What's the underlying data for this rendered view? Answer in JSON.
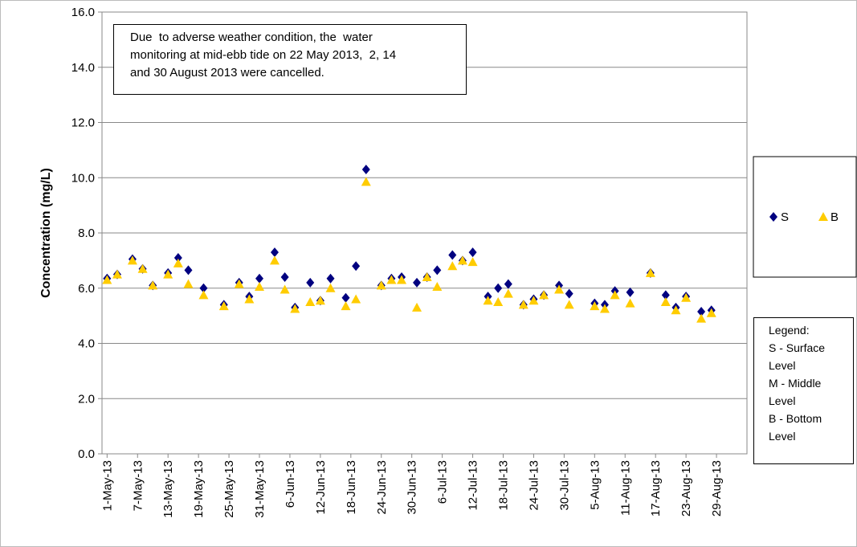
{
  "chart_data": {
    "type": "scatter",
    "ylabel": "Concentration (mg/L)",
    "annotation": [
      "Due  to adverse weather condition, the  water",
      "monitoring at mid-ebb tide on 22 May 2013,  2, 14",
      "and 30 August 2013 were cancelled."
    ],
    "legend_note": [
      "Legend:",
      "S - Surface Level",
      "M - Middle Level",
      "B - Bottom Level"
    ],
    "x": [
      "2013-05-01",
      "2013-05-03",
      "2013-05-06",
      "2013-05-08",
      "2013-05-10",
      "2013-05-13",
      "2013-05-15",
      "2013-05-17",
      "2013-05-20",
      "2013-05-24",
      "2013-05-27",
      "2013-05-29",
      "2013-05-31",
      "2013-06-03",
      "2013-06-05",
      "2013-06-07",
      "2013-06-10",
      "2013-06-12",
      "2013-06-14",
      "2013-06-17",
      "2013-06-19",
      "2013-06-21",
      "2013-06-24",
      "2013-06-26",
      "2013-06-28",
      "2013-07-01",
      "2013-07-03",
      "2013-07-05",
      "2013-07-08",
      "2013-07-10",
      "2013-07-12",
      "2013-07-15",
      "2013-07-17",
      "2013-07-19",
      "2013-07-22",
      "2013-07-24",
      "2013-07-26",
      "2013-07-29",
      "2013-07-31",
      "2013-08-05",
      "2013-08-07",
      "2013-08-09",
      "2013-08-12",
      "2013-08-16",
      "2013-08-19",
      "2013-08-21",
      "2013-08-23",
      "2013-08-26",
      "2013-08-28"
    ],
    "series": [
      {
        "name": "S",
        "color": "#000080",
        "marker": "diamond",
        "values": [
          6.35,
          6.5,
          7.05,
          6.7,
          6.1,
          6.55,
          7.1,
          6.65,
          6.0,
          5.4,
          6.2,
          5.7,
          6.35,
          7.3,
          6.4,
          5.3,
          6.2,
          5.55,
          6.35,
          5.65,
          6.8,
          10.3,
          6.1,
          6.35,
          6.4,
          6.2,
          6.4,
          6.65,
          7.2,
          7.0,
          7.3,
          5.7,
          6.0,
          6.15,
          5.4,
          5.6,
          5.75,
          6.1,
          5.8,
          5.45,
          5.4,
          5.9,
          5.85,
          6.55,
          5.75,
          5.3,
          5.7,
          5.15,
          5.2
        ]
      },
      {
        "name": "B",
        "color": "#FFCC00",
        "marker": "triangle",
        "values": [
          6.3,
          6.5,
          7.0,
          6.7,
          6.1,
          6.5,
          6.9,
          6.15,
          5.75,
          5.35,
          6.15,
          5.6,
          6.05,
          7.0,
          5.95,
          5.25,
          5.5,
          5.55,
          6.0,
          5.35,
          5.6,
          9.85,
          6.1,
          6.3,
          6.3,
          5.3,
          6.4,
          6.05,
          6.8,
          7.0,
          6.95,
          5.55,
          5.5,
          5.8,
          5.4,
          5.55,
          5.75,
          5.95,
          5.4,
          5.35,
          5.25,
          5.75,
          5.45,
          6.55,
          5.5,
          5.2,
          5.65,
          4.9,
          5.1
        ]
      }
    ],
    "xlim": [
      "2013-04-30",
      "2013-09-04"
    ],
    "xticks": [
      {
        "value": "2013-05-01",
        "label": "1-May-13"
      },
      {
        "value": "2013-05-07",
        "label": "7-May-13"
      },
      {
        "value": "2013-05-13",
        "label": "13-May-13"
      },
      {
        "value": "2013-05-19",
        "label": "19-May-13"
      },
      {
        "value": "2013-05-25",
        "label": "25-May-13"
      },
      {
        "value": "2013-05-31",
        "label": "31-May-13"
      },
      {
        "value": "2013-06-06",
        "label": "6-Jun-13"
      },
      {
        "value": "2013-06-12",
        "label": "12-Jun-13"
      },
      {
        "value": "2013-06-18",
        "label": "18-Jun-13"
      },
      {
        "value": "2013-06-24",
        "label": "24-Jun-13"
      },
      {
        "value": "2013-06-30",
        "label": "30-Jun-13"
      },
      {
        "value": "2013-07-06",
        "label": "6-Jul-13"
      },
      {
        "value": "2013-07-12",
        "label": "12-Jul-13"
      },
      {
        "value": "2013-07-18",
        "label": "18-Jul-13"
      },
      {
        "value": "2013-07-24",
        "label": "24-Jul-13"
      },
      {
        "value": "2013-07-30",
        "label": "30-Jul-13"
      },
      {
        "value": "2013-08-05",
        "label": "5-Aug-13"
      },
      {
        "value": "2013-08-11",
        "label": "11-Aug-13"
      },
      {
        "value": "2013-08-17",
        "label": "17-Aug-13"
      },
      {
        "value": "2013-08-23",
        "label": "23-Aug-13"
      },
      {
        "value": "2013-08-29",
        "label": "29-Aug-13"
      }
    ],
    "ylim": [
      0,
      16
    ],
    "yticks": [
      {
        "value": 0,
        "label": "0.0"
      },
      {
        "value": 2,
        "label": "2.0"
      },
      {
        "value": 4,
        "label": "4.0"
      },
      {
        "value": 6,
        "label": "6.0"
      },
      {
        "value": 8,
        "label": "8.0"
      },
      {
        "value": 10,
        "label": "10.0"
      },
      {
        "value": 12,
        "label": "12.0"
      },
      {
        "value": 14,
        "label": "14.0"
      },
      {
        "value": 16,
        "label": "16.0"
      }
    ],
    "grid": true
  }
}
